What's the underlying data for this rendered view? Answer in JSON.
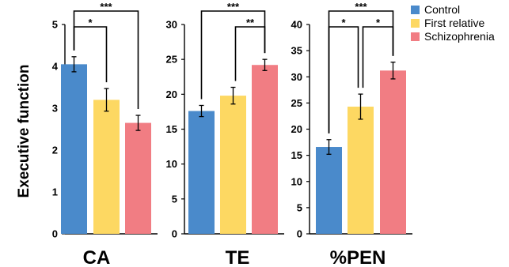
{
  "chart_data": {
    "type": "bar",
    "ylabel": "Executive function",
    "categories": [
      "Control",
      "First relative",
      "Schizophrenia"
    ],
    "colors": [
      "#4a8acb",
      "#fdd862",
      "#f17d83"
    ],
    "legend": {
      "position": "top-right",
      "entries": [
        "Control",
        "First relative",
        "Schizophrenia"
      ]
    },
    "panels": [
      {
        "title": "CA",
        "ylim": [
          0,
          5
        ],
        "yticks": [
          "0",
          "1",
          "2",
          "3",
          "4",
          "5"
        ],
        "values": [
          4.05,
          3.2,
          2.65
        ],
        "errors": [
          0.18,
          0.27,
          0.18
        ],
        "significance": [
          {
            "from": 0,
            "to": 2,
            "label": "***"
          },
          {
            "from": 0,
            "to": 1,
            "label": "*"
          }
        ]
      },
      {
        "title": "TE",
        "ylim": [
          0,
          30
        ],
        "yticks": [
          "0",
          "5",
          "10",
          "15",
          "20",
          "25",
          "30"
        ],
        "values": [
          17.6,
          19.8,
          24.2
        ],
        "errors": [
          0.8,
          1.2,
          0.8
        ],
        "significance": [
          {
            "from": 0,
            "to": 2,
            "label": "***"
          },
          {
            "from": 1,
            "to": 2,
            "label": "**"
          }
        ]
      },
      {
        "title": "%PEN",
        "ylim": [
          0,
          40
        ],
        "yticks": [
          "0",
          "5",
          "10",
          "15",
          "20",
          "25",
          "30",
          "35",
          "40"
        ],
        "values": [
          16.6,
          24.3,
          31.2
        ],
        "errors": [
          1.4,
          2.4,
          1.6
        ],
        "significance": [
          {
            "from": 0,
            "to": 2,
            "label": "***"
          },
          {
            "from": 0,
            "to": 1,
            "label": "*"
          },
          {
            "from": 1,
            "to": 2,
            "label": "*"
          }
        ]
      }
    ]
  }
}
